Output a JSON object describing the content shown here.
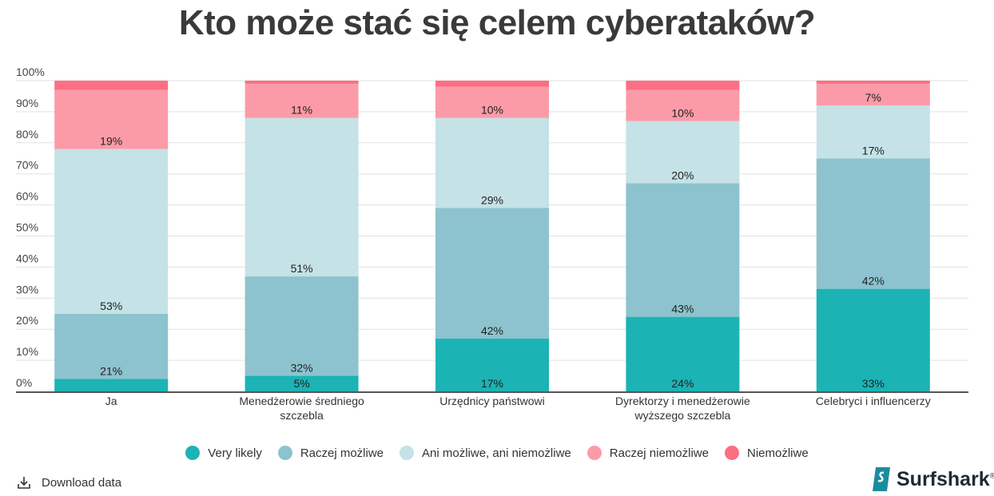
{
  "chart_data": {
    "type": "bar",
    "stacked": true,
    "title": "Kto może stać się celem cyberataków?",
    "categories": [
      "Ja",
      "Menedżerowie średniego szczebla",
      "Urzędnicy państwowi",
      "Dyrektorzy i menedżerowie wyższego szczebla",
      "Celebryci i influencerzy"
    ],
    "category_lines": [
      [
        "Ja"
      ],
      [
        "Menedżerowie średniego",
        "szczebla"
      ],
      [
        "Urzędnicy państwowi"
      ],
      [
        "Dyrektorzy i menedżerowie",
        "wyższego szczebla"
      ],
      [
        "Celebryci i influencerzy"
      ]
    ],
    "series": [
      {
        "name": "Very likely",
        "color": "#1cb3b5",
        "values": [
          4,
          5,
          17,
          24,
          33
        ]
      },
      {
        "name": "Raczej możliwe",
        "color": "#8cc3ce",
        "values": [
          21,
          32,
          42,
          43,
          42
        ]
      },
      {
        "name": "Ani możliwe, ani niemożliwe",
        "color": "#c5e2e6",
        "values": [
          53,
          51,
          29,
          20,
          17
        ]
      },
      {
        "name": "Raczej niemożliwe",
        "color": "#fc9ba8",
        "values": [
          19,
          11,
          10,
          10,
          7
        ]
      },
      {
        "name": "Niemożliwe",
        "color": "#fc6f83",
        "values": [
          3,
          1,
          2,
          3,
          1
        ]
      }
    ],
    "ylim": [
      0,
      100
    ],
    "yticks": [
      "0%",
      "10%",
      "20%",
      "30%",
      "40%",
      "50%",
      "60%",
      "70%",
      "80%",
      "90%",
      "100%"
    ],
    "grid": true,
    "legend": "bottom"
  },
  "footer": {
    "download_label": "Download data",
    "brand": "Surfshark"
  }
}
